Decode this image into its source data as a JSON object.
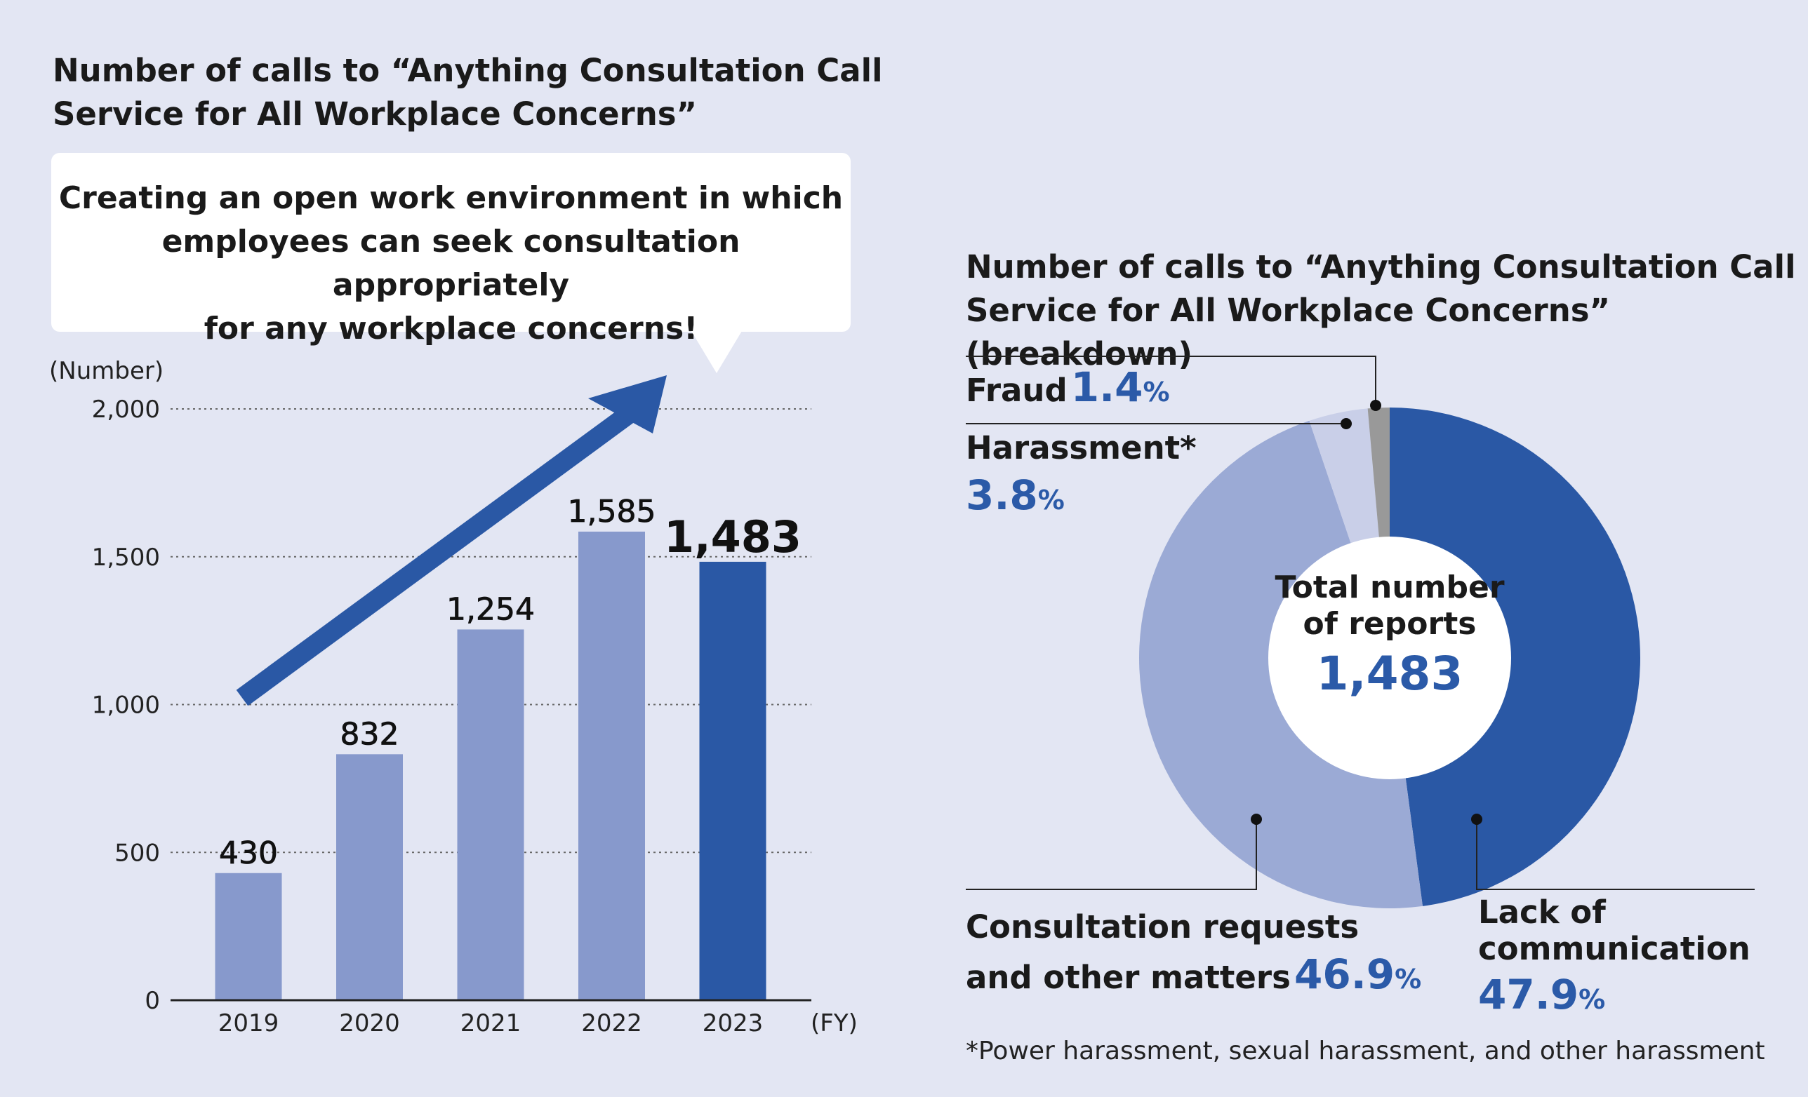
{
  "left_title_line1": "Number of calls to “Anything Consultation Call",
  "left_title_line2": "Service for All Workplace Concerns”",
  "bubble_line1": "Creating an open work environment in which",
  "bubble_line2": "employees can seek consultation appropriately",
  "bubble_line3": "for any workplace concerns!",
  "right_title_line1": "Number of calls to “Anything Consultation Call",
  "right_title_line2": "Service for All Workplace Concerns” (breakdown)",
  "footnote": "*Power harassment, sexual harassment, and other harassment",
  "center_label_line1": "Total number",
  "center_label_line2": "of reports",
  "center_value": "1,483",
  "percent_sign": "%",
  "colors": {
    "bar": "#8799cc",
    "bar_highlight": "#2a58a5",
    "accent_text": "#2b5aa8",
    "background": "#e3e6f3",
    "pie_lack": "#2a58a5",
    "pie_consult": "#9baad5",
    "pie_harass": "#c9cfe8",
    "pie_fraud": "#999999"
  },
  "chart_data": [
    {
      "type": "bar",
      "ylabel": "(Number)",
      "xlabel": "(FY)",
      "ylim": [
        0,
        2000
      ],
      "yticks": [
        0,
        500,
        1000,
        1500,
        2000
      ],
      "ytick_labels": [
        "0",
        "500",
        "1,000",
        "1,500",
        "2,000"
      ],
      "grid": true,
      "categories": [
        "2019",
        "2020",
        "2021",
        "2022",
        "2023"
      ],
      "values": [
        430,
        832,
        1254,
        1585,
        1483
      ],
      "value_labels": [
        "430",
        "832",
        "1,254",
        "1,585",
        "1,483"
      ],
      "highlight_index": 4
    },
    {
      "type": "pie",
      "donut": true,
      "total": 1483,
      "slices": [
        {
          "label": "Lack of communication",
          "label_lines": [
            "Lack of",
            "communication"
          ],
          "value": 47.9,
          "value_text": "47.9",
          "color": "#2a58a5"
        },
        {
          "label": "Consultation requests and other matters",
          "label_lines": [
            "Consultation requests",
            "and other matters"
          ],
          "value": 46.9,
          "value_text": "46.9",
          "color": "#9baad5"
        },
        {
          "label": "Harassment*",
          "label_lines": [
            "Harassment*"
          ],
          "value": 3.8,
          "value_text": "3.8",
          "color": "#c9cfe8"
        },
        {
          "label": "Fraud",
          "label_lines": [
            "Fraud"
          ],
          "value": 1.4,
          "value_text": "1.4",
          "color": "#999999"
        }
      ]
    }
  ]
}
